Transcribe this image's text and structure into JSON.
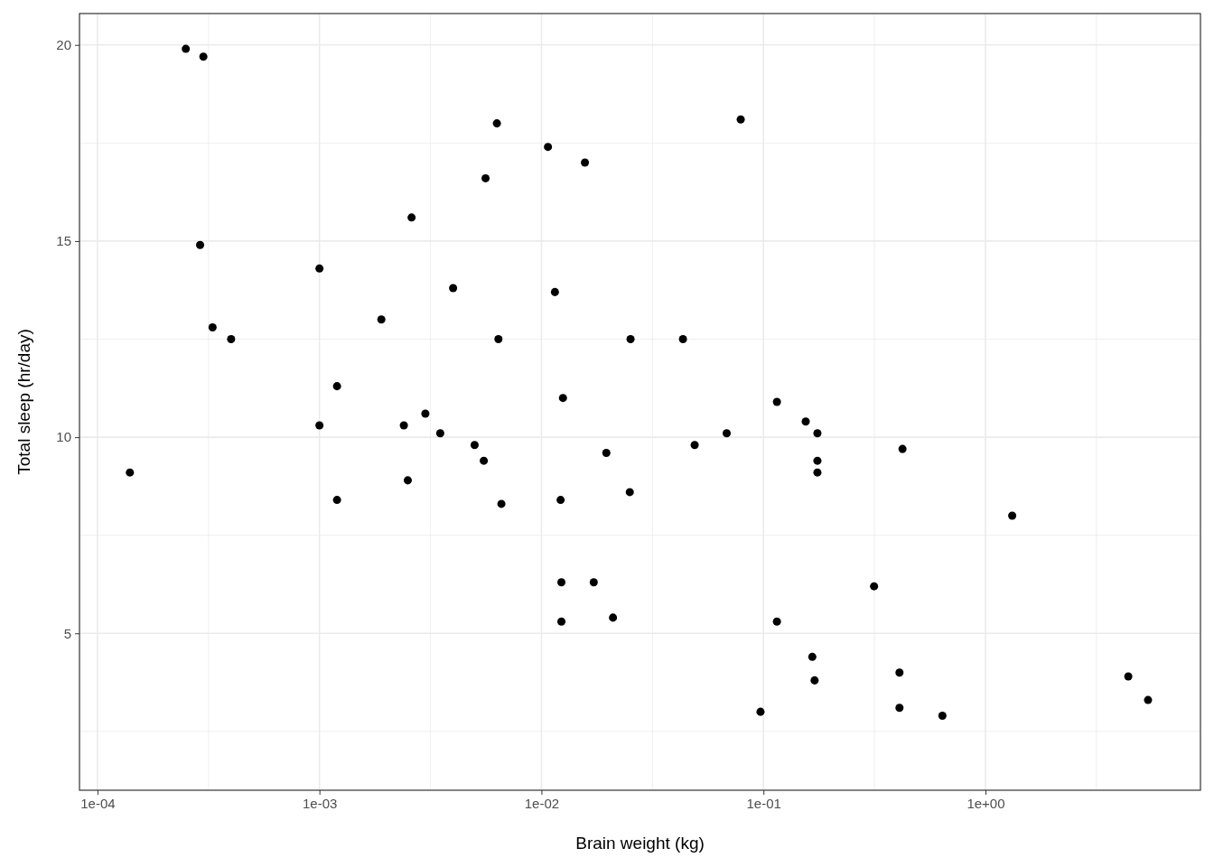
{
  "chart_data": {
    "type": "scatter",
    "xlabel": "Brain weight (kg)",
    "ylabel": "Total sleep (hr/day)",
    "log": "x",
    "grid": true,
    "marker": "circle",
    "xlim": [
      8.3e-05,
      9.3
    ],
    "ylim": [
      1.0,
      20.8
    ],
    "xticks": [
      {
        "value": 0.0001,
        "label": "1e-04"
      },
      {
        "value": 0.001,
        "label": "1e-03"
      },
      {
        "value": 0.01,
        "label": "1e-02"
      },
      {
        "value": 0.1,
        "label": "1e-01"
      },
      {
        "value": 1,
        "label": "1e+00"
      }
    ],
    "yticks": [
      5,
      10,
      15,
      20
    ],
    "series": [
      {
        "color": "#000000",
        "x": [
          0.00014,
          0.00025,
          0.0003,
          0.00029,
          0.00033,
          0.0004,
          0.001,
          0.001,
          0.0012,
          0.0012,
          0.0019,
          0.0024,
          0.0025,
          0.0026,
          0.003,
          0.0035,
          0.004,
          0.005,
          0.0055,
          0.0056,
          0.0063,
          0.0064,
          0.0066,
          0.0107,
          0.0115,
          0.0122,
          0.0123,
          0.0123,
          0.0125,
          0.0157,
          0.0172,
          0.0196,
          0.021,
          0.025,
          0.0252,
          0.0434,
          0.049,
          0.0683,
          0.079,
          0.097,
          0.115,
          0.115,
          0.155,
          0.166,
          0.17,
          0.175,
          0.175,
          0.175,
          0.315,
          0.41,
          0.41,
          0.423,
          0.64,
          1.32,
          4.4,
          5.4
        ],
        "values": [
          9.1,
          19.9,
          19.7,
          14.9,
          12.8,
          12.5,
          14.3,
          10.3,
          11.3,
          8.4,
          13.0,
          10.3,
          8.9,
          15.6,
          10.6,
          10.1,
          13.8,
          9.8,
          9.4,
          16.6,
          18.0,
          12.5,
          8.3,
          17.4,
          13.7,
          8.4,
          6.3,
          5.3,
          11.0,
          17.0,
          6.3,
          9.6,
          5.4,
          8.6,
          12.5,
          12.5,
          9.8,
          10.1,
          18.1,
          3.0,
          10.9,
          5.3,
          10.4,
          4.4,
          3.8,
          10.1,
          9.4,
          9.1,
          6.2,
          4.0,
          3.1,
          9.7,
          2.9,
          8.0,
          3.9,
          3.3
        ]
      }
    ]
  }
}
